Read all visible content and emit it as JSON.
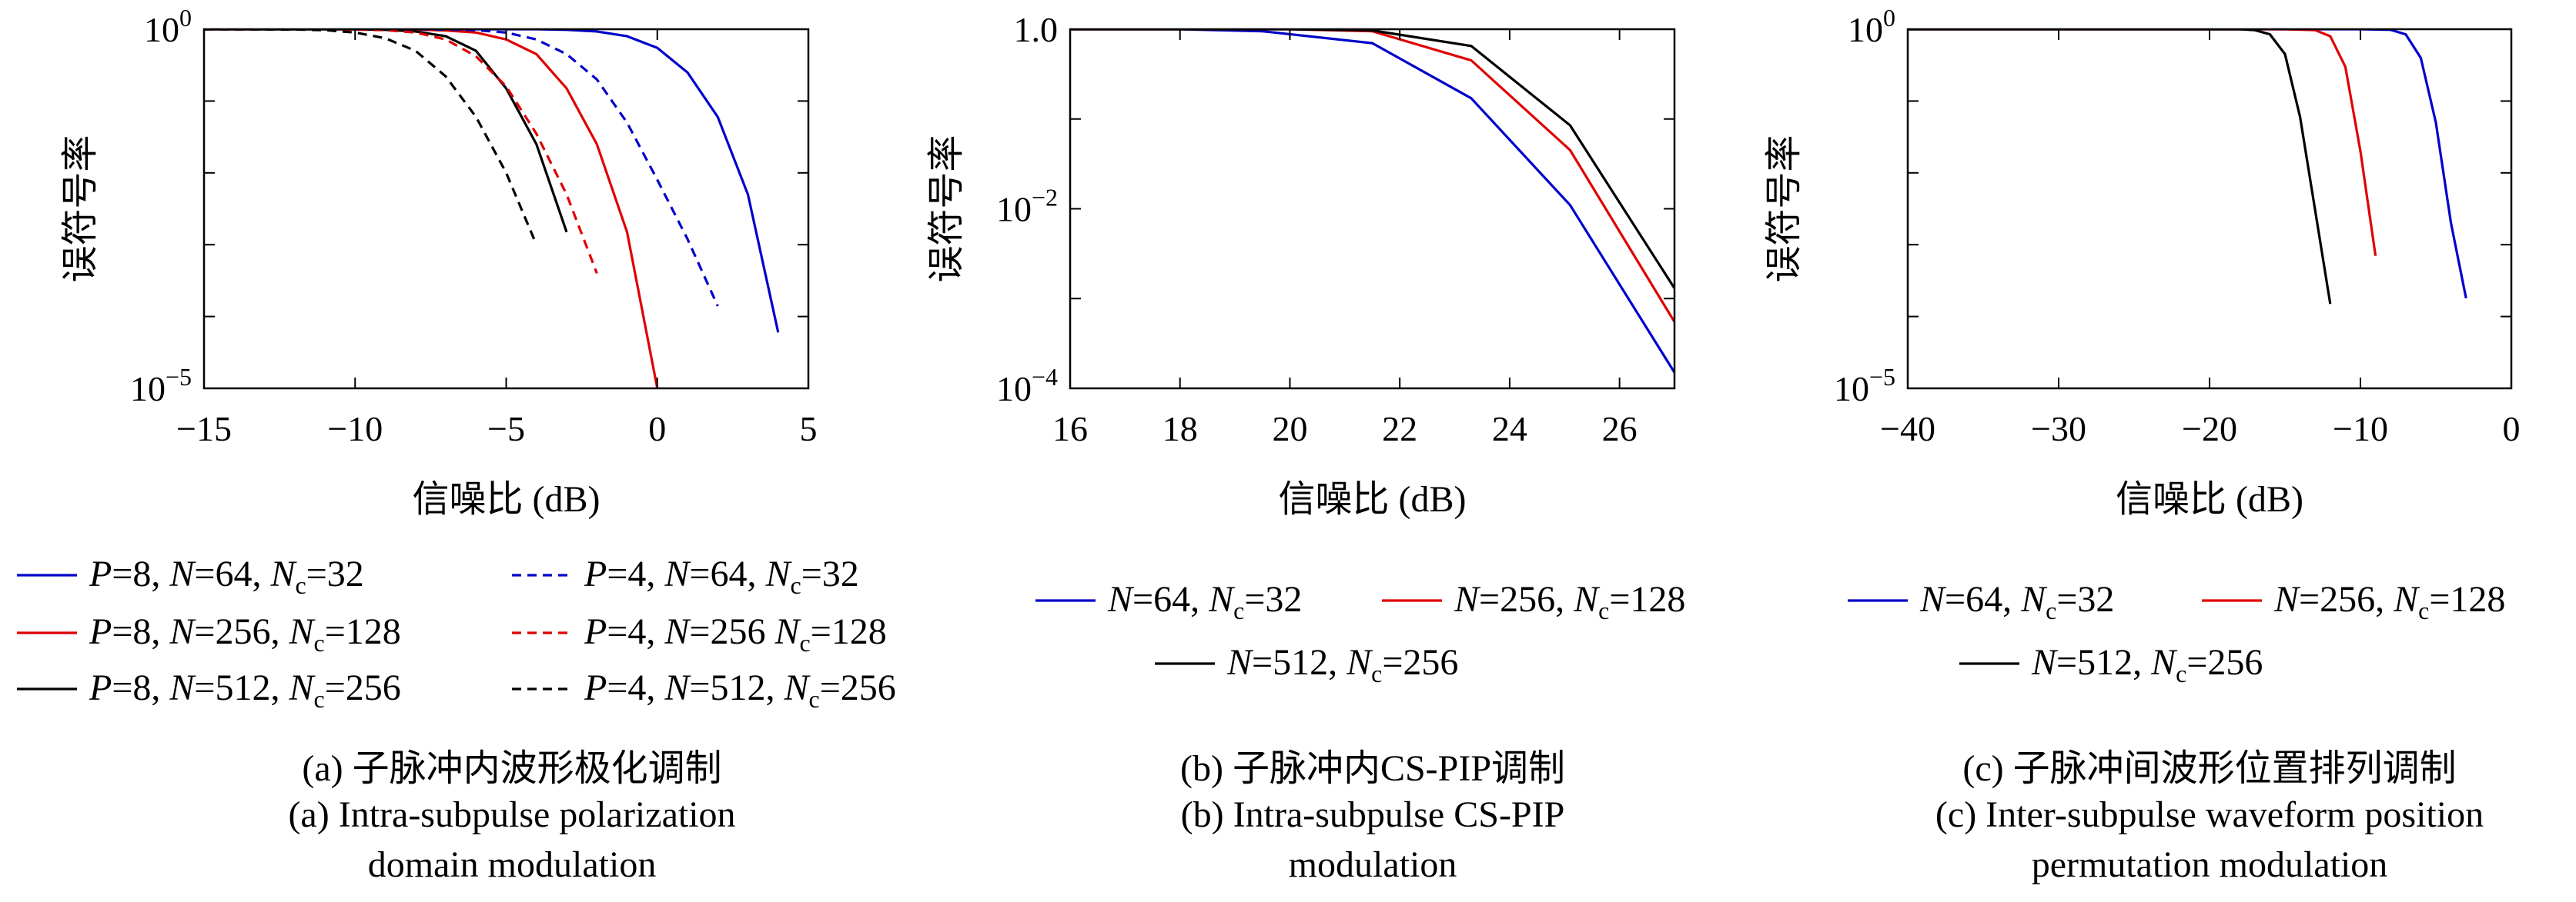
{
  "chart_data": [
    {
      "type": "line",
      "y_scale": "log",
      "xlim": [
        -15,
        5
      ],
      "ylim": [
        1e-05,
        1
      ],
      "xticks": [
        -15,
        -10,
        -5,
        0,
        5
      ],
      "xtick_labels": [
        "−15",
        "−10",
        "−5",
        "0",
        "5"
      ],
      "ytick_labels": [
        {
          "base": "10",
          "exp": "0",
          "value": 1
        },
        {
          "base": "10",
          "exp": "−5",
          "value": 1e-05
        }
      ],
      "xlabel": "信噪比 (dB)",
      "ylabel": "误符号率",
      "legend_columns": 2,
      "series": [
        {
          "name": "P=8, N=64, Nc=32",
          "label_parts": [
            "P",
            "=8, ",
            "N",
            "=64, ",
            "N",
            "c",
            "=32"
          ],
          "color": "#0000cc",
          "dash": "solid",
          "x": [
            -15,
            -10,
            -6,
            -4,
            -3,
            -2,
            -1,
            0,
            1,
            2,
            3,
            4
          ],
          "y": [
            1,
            1,
            1,
            1,
            0.98,
            0.93,
            0.8,
            0.55,
            0.25,
            0.06,
            0.005,
            6e-05
          ]
        },
        {
          "name": "P=8, N=256, Nc=128",
          "label_parts": [
            "P",
            "=8, ",
            "N",
            "=256, ",
            "N",
            "c",
            "=128"
          ],
          "color": "#e00000",
          "dash": "solid",
          "x": [
            -15,
            -10,
            -8,
            -7,
            -6,
            -5,
            -4,
            -3,
            -2,
            -1,
            0
          ],
          "y": [
            1,
            1,
            0.99,
            0.96,
            0.9,
            0.72,
            0.45,
            0.15,
            0.025,
            0.0015,
            1e-05
          ]
        },
        {
          "name": "P=8, N=512, Nc=256",
          "label_parts": [
            "P",
            "=8, ",
            "N",
            "=512, ",
            "N",
            "c",
            "=256"
          ],
          "color": "#000000",
          "dash": "solid",
          "x": [
            -15,
            -10,
            -9,
            -8,
            -7,
            -6,
            -5,
            -4,
            -3
          ],
          "y": [
            1,
            1,
            0.98,
            0.93,
            0.8,
            0.5,
            0.15,
            0.025,
            0.0015
          ]
        },
        {
          "name": "P=4, N=64, Nc=32",
          "label_parts": [
            "P",
            "=4, ",
            "N",
            "=64, ",
            "N",
            "c",
            "=32"
          ],
          "color": "#0000cc",
          "dash": "dashed",
          "x": [
            -15,
            -10,
            -8,
            -7,
            -6,
            -5,
            -4,
            -3,
            -2,
            -1,
            0,
            1,
            2
          ],
          "y": [
            1,
            1,
            1,
            0.99,
            0.97,
            0.9,
            0.72,
            0.45,
            0.2,
            0.05,
            0.008,
            0.0012,
            0.00014
          ]
        },
        {
          "name": "P=4, N=256 Nc=128",
          "label_parts": [
            "P",
            "=4, ",
            "N",
            "=256 ",
            "N",
            "c",
            "=128"
          ],
          "color": "#e00000",
          "dash": "dashed",
          "x": [
            -15,
            -12,
            -10,
            -9,
            -8,
            -7,
            -6,
            -5,
            -4,
            -3,
            -2
          ],
          "y": [
            1,
            1,
            0.99,
            0.97,
            0.9,
            0.72,
            0.42,
            0.16,
            0.035,
            0.005,
            0.0004
          ]
        },
        {
          "name": "P=4, N=512, Nc=256",
          "label_parts": [
            "P",
            "=4, ",
            "N",
            "=512, ",
            "N",
            "c",
            "=256"
          ],
          "color": "#000000",
          "dash": "dashed",
          "x": [
            -15,
            -12,
            -11,
            -10,
            -9,
            -8,
            -7,
            -6,
            -5,
            -4
          ],
          "y": [
            1,
            0.99,
            0.97,
            0.9,
            0.75,
            0.5,
            0.22,
            0.06,
            0.01,
            0.001
          ]
        }
      ],
      "caption_cn": "(a) 子脉冲内波形极化调制",
      "caption_en": [
        "(a) Intra-subpulse polarization",
        "domain modulation"
      ]
    },
    {
      "type": "line",
      "y_scale": "log",
      "xlim": [
        16,
        27
      ],
      "ylim": [
        0.0001,
        1
      ],
      "xticks": [
        16,
        18,
        20,
        22,
        24,
        26
      ],
      "xtick_labels": [
        "16",
        "18",
        "20",
        "22",
        "24",
        "26"
      ],
      "ytick_labels": [
        {
          "base": "1.0",
          "exp": "",
          "value": 1
        },
        {
          "base": "10",
          "exp": "−2",
          "value": 0.01
        },
        {
          "base": "10",
          "exp": "−4",
          "value": 0.0001
        }
      ],
      "xlabel": "信噪比 (dB)",
      "ylabel": "误符号率",
      "legend_columns": 2,
      "series": [
        {
          "name": "N=64, Nc=32",
          "label_parts": [
            "",
            "",
            "N",
            "=64, ",
            "N",
            "c",
            "=32"
          ],
          "color": "#0000cc",
          "dash": "solid",
          "x": [
            16,
            18,
            19.5,
            21.5,
            23.3,
            25.1,
            27
          ],
          "y": [
            1,
            1,
            0.95,
            0.7,
            0.17,
            0.011,
            0.00015
          ]
        },
        {
          "name": "N=256, Nc=128",
          "label_parts": [
            "",
            "",
            "N",
            "=256, ",
            "N",
            "c",
            "=128"
          ],
          "color": "#e00000",
          "dash": "solid",
          "x": [
            16,
            18,
            20,
            21.5,
            23.3,
            25.1,
            27
          ],
          "y": [
            1,
            1,
            1,
            0.95,
            0.45,
            0.045,
            0.00055
          ]
        },
        {
          "name": "N=512, Nc=256",
          "label_parts": [
            "",
            "",
            "N",
            "=512, ",
            "N",
            "c",
            "=256"
          ],
          "color": "#000000",
          "dash": "solid",
          "x": [
            16,
            18,
            20,
            21.5,
            23.3,
            25.1,
            27
          ],
          "y": [
            1,
            1,
            1,
            0.97,
            0.65,
            0.085,
            0.0013
          ]
        }
      ],
      "caption_cn": "(b) 子脉冲内CS-PIP调制",
      "caption_en": [
        "(b) Intra-subpulse CS-PIP",
        "modulation"
      ]
    },
    {
      "type": "line",
      "y_scale": "log",
      "xlim": [
        -40,
        0
      ],
      "ylim": [
        1e-05,
        1
      ],
      "xticks": [
        -40,
        -30,
        -20,
        -10,
        0
      ],
      "xtick_labels": [
        "−40",
        "−30",
        "−20",
        "−10",
        "0"
      ],
      "ytick_labels": [
        {
          "base": "10",
          "exp": "0",
          "value": 1
        },
        {
          "base": "10",
          "exp": "−5",
          "value": 1e-05
        }
      ],
      "xlabel": "信噪比 (dB)",
      "ylabel": "误符号率",
      "legend_columns": 2,
      "series": [
        {
          "name": "N=64, Nc=32",
          "label_parts": [
            "",
            "",
            "N",
            "=64, ",
            "N",
            "c",
            "=32"
          ],
          "color": "#0000cc",
          "dash": "solid",
          "x": [
            -40,
            -20,
            -10,
            -8,
            -7,
            -6,
            -5,
            -4,
            -3
          ],
          "y": [
            1,
            1,
            1,
            0.98,
            0.85,
            0.4,
            0.05,
            0.002,
            0.00018
          ]
        },
        {
          "name": "N=256, Nc=128",
          "label_parts": [
            "",
            "",
            "N",
            "=256, ",
            "N",
            "c",
            "=128"
          ],
          "color": "#e00000",
          "dash": "solid",
          "x": [
            -40,
            -20,
            -15,
            -13,
            -12,
            -11,
            -10,
            -9
          ],
          "y": [
            1,
            1,
            1,
            0.97,
            0.8,
            0.3,
            0.02,
            0.0007
          ]
        },
        {
          "name": "N=512, Nc=256",
          "label_parts": [
            "",
            "",
            "N",
            "=512, ",
            "N",
            "c",
            "=256"
          ],
          "color": "#000000",
          "dash": "solid",
          "x": [
            -40,
            -20,
            -18,
            -17,
            -16,
            -15,
            -14,
            -13,
            -12
          ],
          "y": [
            1,
            1,
            1,
            0.97,
            0.85,
            0.45,
            0.06,
            0.003,
            0.00015
          ]
        }
      ],
      "caption_cn": "(c) 子脉冲间波形位置排列调制",
      "caption_en": [
        "(c) Inter-subpulse waveform position",
        "permutation modulation"
      ]
    }
  ]
}
